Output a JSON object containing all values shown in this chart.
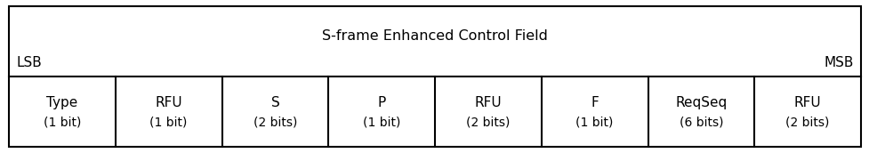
{
  "title": "S-frame Enhanced Control Field",
  "lsb_label": "LSB",
  "msb_label": "MSB",
  "fields": [
    {
      "name": "Type",
      "bits": "(1 bit)"
    },
    {
      "name": "RFU",
      "bits": "(1 bit)"
    },
    {
      "name": "S",
      "bits": "(2 bits)"
    },
    {
      "name": "P",
      "bits": "(1 bit)"
    },
    {
      "name": "RFU",
      "bits": "(2 bits)"
    },
    {
      "name": "F",
      "bits": "(1 bit)"
    },
    {
      "name": "ReqSeq",
      "bits": "(6 bits)"
    },
    {
      "name": "RFU",
      "bits": "(2 bits)"
    }
  ],
  "num_fields": 8,
  "bg_color": "#ffffff",
  "border_color": "#000000",
  "text_color": "#000000",
  "title_fontsize": 11.5,
  "field_name_fontsize": 11,
  "field_bits_fontsize": 10,
  "lsb_msb_fontsize": 11
}
